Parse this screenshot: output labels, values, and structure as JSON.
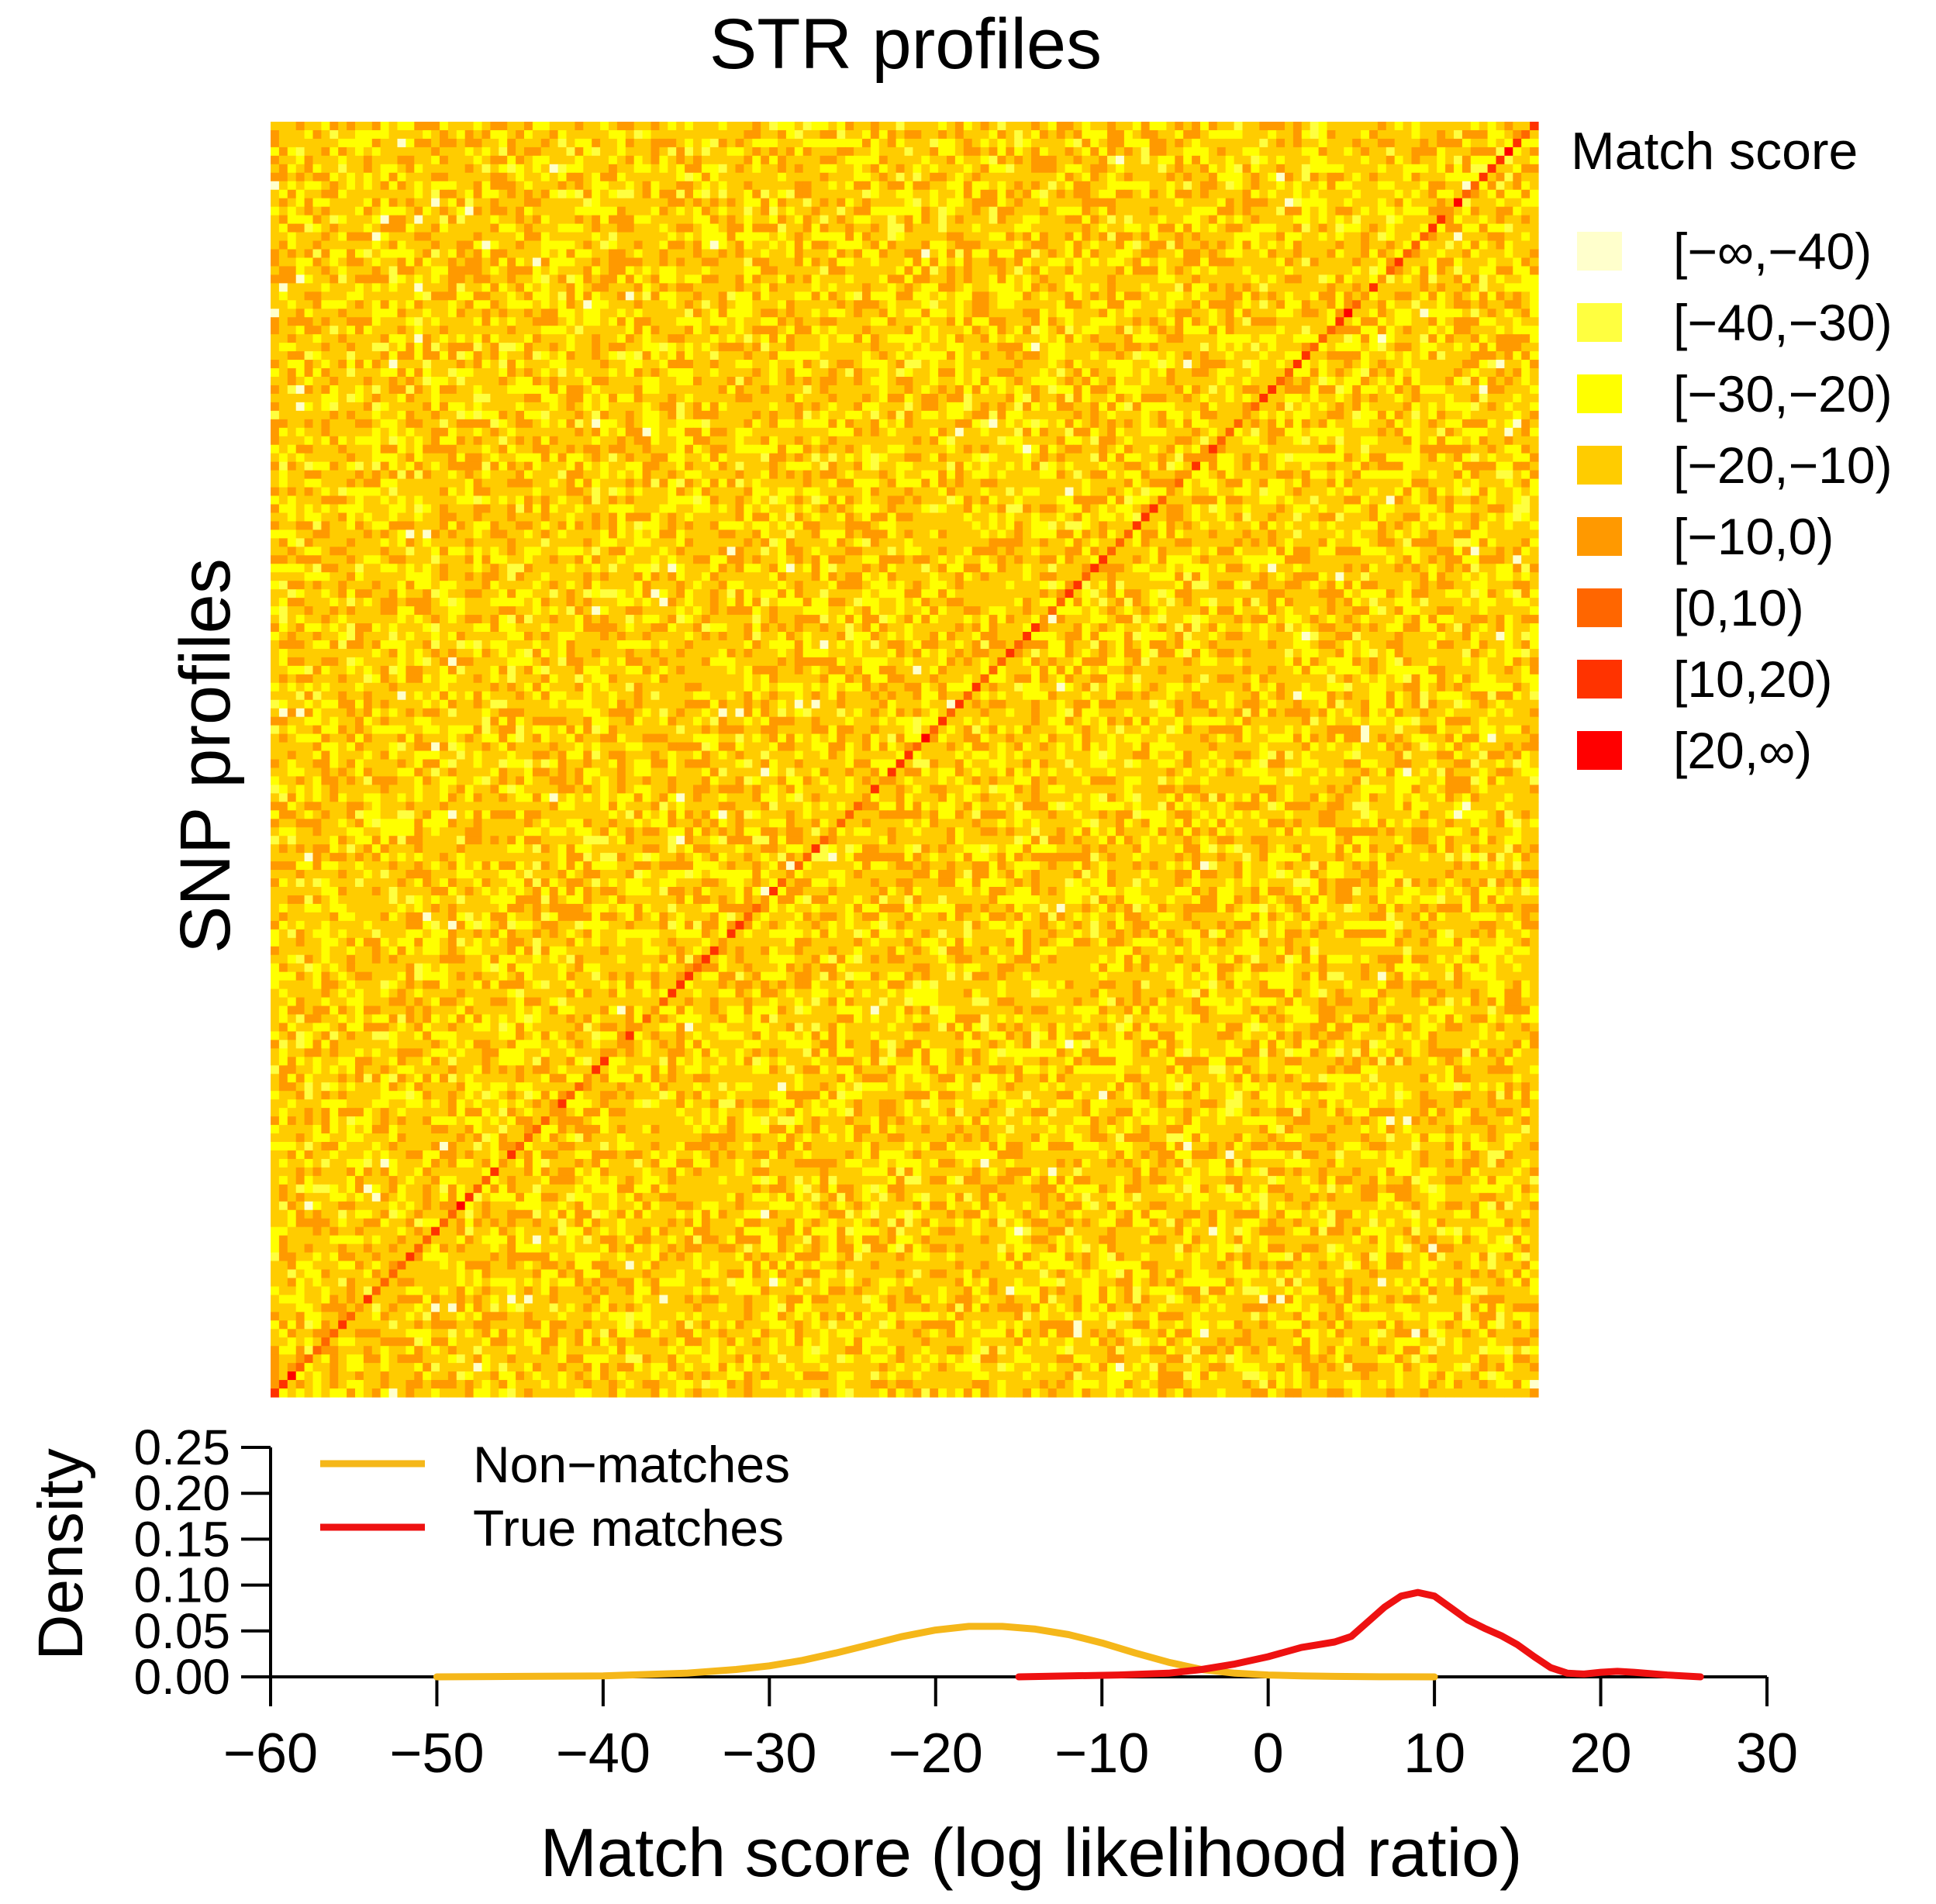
{
  "chart_data": [
    {
      "type": "heatmap",
      "title": "STR profiles",
      "xlabel": "STR profiles",
      "ylabel": "SNP profiles",
      "rows": 150,
      "cols": 150,
      "diagonal_highlight": true,
      "legend": {
        "title": "Match score",
        "placement": "right",
        "items": [
          {
            "label": "[−∞,−40)",
            "color": "#FFFFCC"
          },
          {
            "label": "[−40,−30)",
            "color": "#FFFF40"
          },
          {
            "label": "[−30,−20)",
            "color": "#FFFF00"
          },
          {
            "label": "[−20,−10)",
            "color": "#FFCC00"
          },
          {
            "label": "[−10,0)",
            "color": "#FF9900"
          },
          {
            "label": "[0,10)",
            "color": "#FF6600"
          },
          {
            "label": "[10,20)",
            "color": "#FF3300"
          },
          {
            "label": "[20,∞)",
            "color": "#FF0000"
          }
        ]
      },
      "cell_class_distribution": {
        "off_diagonal": [
          0.005,
          0.04,
          0.25,
          0.48,
          0.225
        ],
        "diagonal": [
          0.15,
          0.45,
          0.35,
          0.05
        ]
      }
    },
    {
      "type": "line",
      "xlabel": "Match score (log likelihood ratio)",
      "ylabel": "Density",
      "xlim": [
        -60,
        30
      ],
      "ylim": [
        0,
        0.25
      ],
      "xticks": [
        -60,
        -50,
        -40,
        -30,
        -20,
        -10,
        0,
        10,
        20,
        30
      ],
      "xtick_labels": [
        "−60",
        "−50",
        "−40",
        "−30",
        "−20",
        "−10",
        "0",
        "10",
        "20",
        "30"
      ],
      "yticks": [
        0,
        0.05,
        0.1,
        0.15,
        0.2,
        0.25
      ],
      "ytick_labels": [
        "0.00",
        "0.05",
        "0.10",
        "0.15",
        "0.20",
        "0.25"
      ],
      "legend_placement": "top-left",
      "series": [
        {
          "name": "Non−matches",
          "color": "#F5B71A",
          "x": [
            -50,
            -45,
            -40,
            -35,
            -32,
            -30,
            -28,
            -26,
            -24,
            -22,
            -20,
            -18,
            -16,
            -14,
            -12,
            -10,
            -8,
            -6,
            -4,
            -2,
            0,
            2,
            4,
            6,
            8,
            10
          ],
          "y": [
            0.0,
            0.0005,
            0.001,
            0.004,
            0.008,
            0.012,
            0.018,
            0.026,
            0.035,
            0.044,
            0.051,
            0.055,
            0.055,
            0.052,
            0.046,
            0.037,
            0.026,
            0.016,
            0.008,
            0.004,
            0.002,
            0.001,
            0.0005,
            0.0002,
            0.0001,
            0.0
          ]
        },
        {
          "name": "True matches",
          "color": "#EE1111",
          "x": [
            -15,
            -12,
            -9,
            -6,
            -4,
            -2,
            0,
            2,
            3,
            4,
            5,
            6,
            7,
            8,
            9,
            10,
            11,
            12,
            13,
            14,
            15,
            16,
            17,
            18,
            19,
            20,
            21,
            22,
            24,
            26
          ],
          "y": [
            0.0,
            0.001,
            0.002,
            0.004,
            0.008,
            0.014,
            0.022,
            0.032,
            0.035,
            0.038,
            0.044,
            0.06,
            0.076,
            0.088,
            0.092,
            0.088,
            0.075,
            0.062,
            0.053,
            0.045,
            0.035,
            0.022,
            0.01,
            0.004,
            0.003,
            0.005,
            0.006,
            0.005,
            0.002,
            0.0
          ]
        }
      ]
    }
  ]
}
